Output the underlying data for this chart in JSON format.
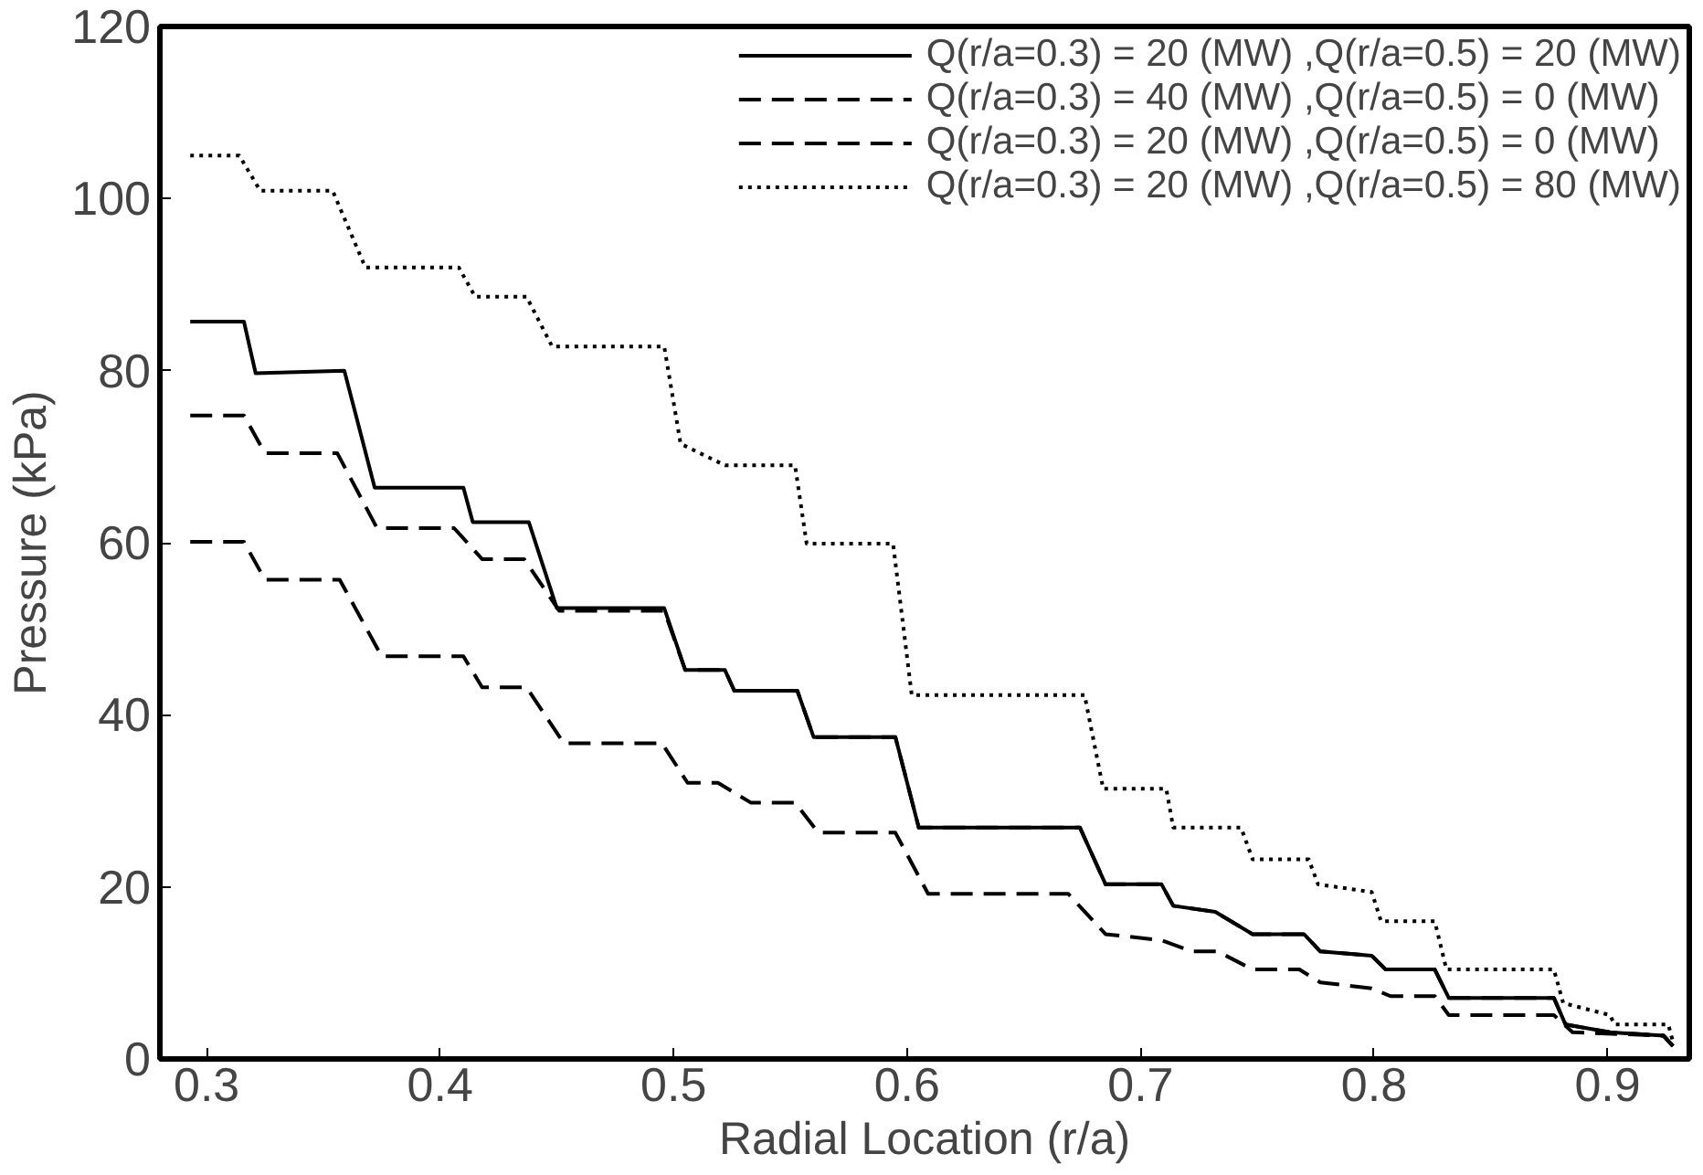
{
  "chart_data": {
    "type": "line",
    "xlabel": "Radial Location (r/a)",
    "ylabel": "Pressure (kPa)",
    "xlim": [
      0.28,
      0.935
    ],
    "ylim": [
      0,
      120
    ],
    "xticks": [
      0.3,
      0.4,
      0.5,
      0.6,
      0.7,
      0.8,
      0.9
    ],
    "yticks": [
      0,
      20,
      40,
      60,
      80,
      100,
      120
    ],
    "grid": false,
    "legend": "top right",
    "marker": "none",
    "series": [
      {
        "name": "Q(r/a=0.3) = 20 (MW) ,Q(r/a=0.5) = 20 (MW)",
        "color": "#000000",
        "line_style": "solid",
        "x": [
          0.293,
          0.316,
          0.321,
          0.359,
          0.372,
          0.41,
          0.414,
          0.438,
          0.45,
          0.496,
          0.505,
          0.522,
          0.526,
          0.553,
          0.56,
          0.595,
          0.605,
          0.674,
          0.685,
          0.709,
          0.714,
          0.732,
          0.748,
          0.77,
          0.777,
          0.799,
          0.805,
          0.826,
          0.832,
          0.877,
          0.882,
          0.901,
          0.924,
          0.928
        ],
        "values": [
          85.7,
          85.7,
          79.7,
          80,
          66.4,
          66.4,
          62.4,
          62.4,
          52.4,
          52.4,
          45.2,
          45.2,
          42.8,
          42.8,
          37.4,
          37.4,
          26.9,
          26.9,
          20.3,
          20.3,
          17.8,
          17.1,
          14.5,
          14.5,
          12.5,
          12,
          10.4,
          10.4,
          7.1,
          7.1,
          4,
          3.1,
          2.7,
          1.5
        ]
      },
      {
        "name": "Q(r/a=0.3) = 40 (MW) ,Q(r/a=0.5) = 0 (MW)",
        "color": "#000000",
        "line_style": "dashed",
        "x": [
          0.293,
          0.316,
          0.325,
          0.356,
          0.373,
          0.406,
          0.418,
          0.436,
          0.451,
          0.496,
          0.505,
          0.522,
          0.526,
          0.553,
          0.56,
          0.595,
          0.605,
          0.674,
          0.685,
          0.709,
          0.714,
          0.732,
          0.748,
          0.77,
          0.777,
          0.799,
          0.805,
          0.826,
          0.832,
          0.877,
          0.882,
          0.901,
          0.924,
          0.928
        ],
        "values": [
          74.8,
          74.8,
          70.4,
          70.4,
          61.7,
          61.7,
          58.1,
          58.1,
          52.1,
          52.1,
          45.2,
          45.2,
          42.8,
          42.8,
          37.4,
          37.4,
          26.9,
          26.9,
          20.3,
          20.3,
          17.8,
          17.1,
          14.5,
          14.5,
          12.5,
          12,
          10.4,
          10.4,
          7.1,
          7.1,
          4,
          3.1,
          2.7,
          1.5
        ]
      },
      {
        "name": "Q(r/a=0.3) = 20 (MW) ,Q(r/a=0.5) = 0 (MW)",
        "color": "#000000",
        "line_style": "dashed",
        "x": [
          0.293,
          0.316,
          0.325,
          0.357,
          0.375,
          0.41,
          0.418,
          0.437,
          0.453,
          0.495,
          0.506,
          0.519,
          0.533,
          0.552,
          0.562,
          0.595,
          0.609,
          0.669,
          0.685,
          0.709,
          0.722,
          0.733,
          0.748,
          0.768,
          0.777,
          0.799,
          0.807,
          0.826,
          0.832,
          0.877,
          0.885,
          0.924,
          0.928
        ],
        "values": [
          60.1,
          60.1,
          55.7,
          55.7,
          46.8,
          46.8,
          43.2,
          43.2,
          36.7,
          36.7,
          32.1,
          32.1,
          29.8,
          29.8,
          26.3,
          26.3,
          19.2,
          19.2,
          14.5,
          13.8,
          12.5,
          12.5,
          10.4,
          10.4,
          8.9,
          8.2,
          7.3,
          7.3,
          5.1,
          5.1,
          3.1,
          2.7,
          1.5
        ]
      },
      {
        "name": "Q(r/a=0.3) = 20 (MW) ,Q(r/a=0.5) = 80 (MW)",
        "color": "#000000",
        "line_style": "dotted",
        "x": [
          0.293,
          0.314,
          0.323,
          0.354,
          0.368,
          0.408,
          0.415,
          0.437,
          0.448,
          0.496,
          0.503,
          0.522,
          0.552,
          0.557,
          0.594,
          0.602,
          0.676,
          0.684,
          0.711,
          0.714,
          0.743,
          0.748,
          0.772,
          0.776,
          0.799,
          0.803,
          0.826,
          0.831,
          0.877,
          0.881,
          0.901,
          0.903,
          0.926,
          0.928
        ],
        "values": [
          105,
          105,
          100.9,
          100.9,
          92,
          92,
          88.6,
          88.6,
          82.8,
          82.8,
          71.5,
          69,
          69,
          59.9,
          59.9,
          42.3,
          42.3,
          31.4,
          31.4,
          26.9,
          26.9,
          23.2,
          23.2,
          20.3,
          19.4,
          16,
          16,
          10.4,
          10.4,
          6.5,
          5.1,
          4,
          4,
          2
        ]
      }
    ]
  }
}
